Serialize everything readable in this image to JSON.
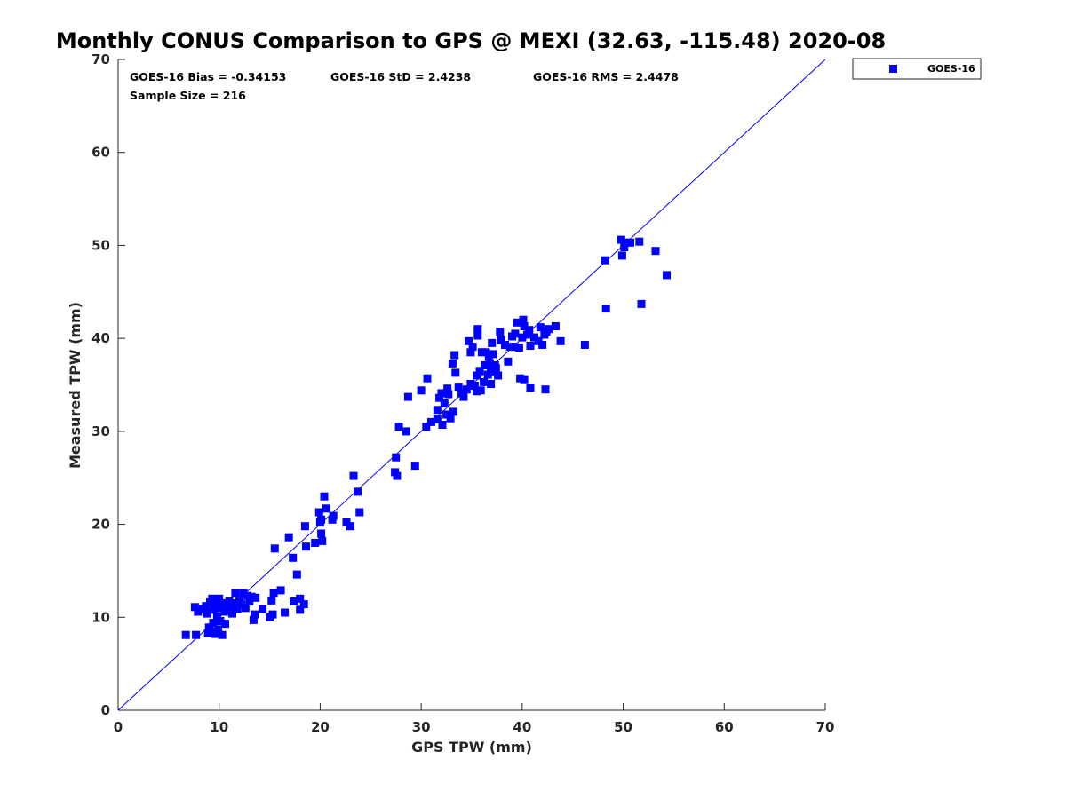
{
  "chart_data": {
    "type": "scatter",
    "title": "Monthly CONUS Comparison to GPS @ MEXI (32.63, -115.48) 2020-08",
    "xlabel": "GPS TPW (mm)",
    "ylabel": "Measured TPW (mm)",
    "xlim": [
      0,
      70
    ],
    "ylim": [
      0,
      70
    ],
    "xticks": [
      "0",
      "10",
      "20",
      "30",
      "40",
      "50",
      "60",
      "70"
    ],
    "yticks": [
      "0",
      "10",
      "20",
      "30",
      "40",
      "50",
      "60",
      "70"
    ],
    "grid": false,
    "legend_position": "top-right, outside plot",
    "reference_line": {
      "x": [
        0,
        70
      ],
      "y": [
        0,
        70
      ],
      "color": "#0000ff"
    },
    "stats": {
      "bias": "GOES-16 Bias = -0.34153",
      "std": "GOES-16 StD = 2.4238",
      "rms": "GOES-16 RMS = 2.4478",
      "sample": "Sample Size = 216"
    },
    "series": [
      {
        "name": "GOES-16",
        "color": "#0000ff",
        "marker": "square",
        "points": [
          [
            6.7,
            8.1
          ],
          [
            7.7,
            8.1
          ],
          [
            7.6,
            11.1
          ],
          [
            7.9,
            10.6
          ],
          [
            8.4,
            10.9
          ],
          [
            8.8,
            10.4
          ],
          [
            8.7,
            11.2
          ],
          [
            8.9,
            8.3
          ],
          [
            9.0,
            8.9
          ],
          [
            9.1,
            11.6
          ],
          [
            9.2,
            8.5
          ],
          [
            9.3,
            12.0
          ],
          [
            9.4,
            9.4
          ],
          [
            9.5,
            10.8
          ],
          [
            9.6,
            8.2
          ],
          [
            9.7,
            11.3
          ],
          [
            9.8,
            10.1
          ],
          [
            9.9,
            8.7
          ],
          [
            10.0,
            12.0
          ],
          [
            10.1,
            9.6
          ],
          [
            10.2,
            11.0
          ],
          [
            10.3,
            8.1
          ],
          [
            10.4,
            11.5
          ],
          [
            10.5,
            10.6
          ],
          [
            10.6,
            9.3
          ],
          [
            10.8,
            11.2
          ],
          [
            11.0,
            11.7
          ],
          [
            11.1,
            10.9
          ],
          [
            11.3,
            10.4
          ],
          [
            11.5,
            11.5
          ],
          [
            11.6,
            12.6
          ],
          [
            11.8,
            10.9
          ],
          [
            12.0,
            12.0
          ],
          [
            12.2,
            11.4
          ],
          [
            12.4,
            12.6
          ],
          [
            12.6,
            11.0
          ],
          [
            12.8,
            12.3
          ],
          [
            13.0,
            11.7
          ],
          [
            13.2,
            12.2
          ],
          [
            13.4,
            9.7
          ],
          [
            13.5,
            10.3
          ],
          [
            13.6,
            12.1
          ],
          [
            14.3,
            10.9
          ],
          [
            15.0,
            10.0
          ],
          [
            15.2,
            11.8
          ],
          [
            15.4,
            12.6
          ],
          [
            15.3,
            10.3
          ],
          [
            16.1,
            12.9
          ],
          [
            16.5,
            10.5
          ],
          [
            16.9,
            18.6
          ],
          [
            17.3,
            16.4
          ],
          [
            17.4,
            11.7
          ],
          [
            17.7,
            14.6
          ],
          [
            18.0,
            12.0
          ],
          [
            18.0,
            10.8
          ],
          [
            18.4,
            11.4
          ],
          [
            18.5,
            19.8
          ],
          [
            18.6,
            17.6
          ],
          [
            15.5,
            17.4
          ],
          [
            19.5,
            18.0
          ],
          [
            19.9,
            21.3
          ],
          [
            20.0,
            20.2
          ],
          [
            20.1,
            20.5
          ],
          [
            20.2,
            18.2
          ],
          [
            20.1,
            19.0
          ],
          [
            20.4,
            23.0
          ],
          [
            20.6,
            21.7
          ],
          [
            21.2,
            20.5
          ],
          [
            21.3,
            20.9
          ],
          [
            22.6,
            20.2
          ],
          [
            23.0,
            19.8
          ],
          [
            23.3,
            25.2
          ],
          [
            23.7,
            23.5
          ],
          [
            23.9,
            21.3
          ],
          [
            27.4,
            25.6
          ],
          [
            27.5,
            27.2
          ],
          [
            27.6,
            25.2
          ],
          [
            27.8,
            30.5
          ],
          [
            28.5,
            30.0
          ],
          [
            28.7,
            33.7
          ],
          [
            29.4,
            26.3
          ],
          [
            30.0,
            34.4
          ],
          [
            30.5,
            30.5
          ],
          [
            30.6,
            35.7
          ],
          [
            31.0,
            31.0
          ],
          [
            31.6,
            31.3
          ],
          [
            31.6,
            32.3
          ],
          [
            31.8,
            33.6
          ],
          [
            32.0,
            34.1
          ],
          [
            32.1,
            30.7
          ],
          [
            32.3,
            33.0
          ],
          [
            32.5,
            31.8
          ],
          [
            32.6,
            34.6
          ],
          [
            32.7,
            34.0
          ],
          [
            32.9,
            31.4
          ],
          [
            33.2,
            32.1
          ],
          [
            33.1,
            37.3
          ],
          [
            33.3,
            38.2
          ],
          [
            33.4,
            36.3
          ],
          [
            33.7,
            34.8
          ],
          [
            34.0,
            34.1
          ],
          [
            34.2,
            33.7
          ],
          [
            34.5,
            34.5
          ],
          [
            34.7,
            39.7
          ],
          [
            34.9,
            35.1
          ],
          [
            34.9,
            38.5
          ],
          [
            35.1,
            39.1
          ],
          [
            35.3,
            34.9
          ],
          [
            35.5,
            36.0
          ],
          [
            35.5,
            34.3
          ],
          [
            35.6,
            40.3
          ],
          [
            35.6,
            41.0
          ],
          [
            35.8,
            36.5
          ],
          [
            35.9,
            34.4
          ],
          [
            36.0,
            38.5
          ],
          [
            36.2,
            35.3
          ],
          [
            36.3,
            37.1
          ],
          [
            36.4,
            38.5
          ],
          [
            36.6,
            36.1
          ],
          [
            36.7,
            38.0
          ],
          [
            36.8,
            37.3
          ],
          [
            36.9,
            35.1
          ],
          [
            36.9,
            36.6
          ],
          [
            37.0,
            39.5
          ],
          [
            37.1,
            38.3
          ],
          [
            37.2,
            36.4
          ],
          [
            37.3,
            37.1
          ],
          [
            37.4,
            36.8
          ],
          [
            37.6,
            36.0
          ],
          [
            37.8,
            40.7
          ],
          [
            37.9,
            39.8
          ],
          [
            38.3,
            39.3
          ],
          [
            38.6,
            37.5
          ],
          [
            38.8,
            39.1
          ],
          [
            39.0,
            40.2
          ],
          [
            39.2,
            39.1
          ],
          [
            39.3,
            40.5
          ],
          [
            39.5,
            41.7
          ],
          [
            39.7,
            39.0
          ],
          [
            39.8,
            35.7
          ],
          [
            40.0,
            40.1
          ],
          [
            40.1,
            42.0
          ],
          [
            40.2,
            35.6
          ],
          [
            40.2,
            41.3
          ],
          [
            40.5,
            40.4
          ],
          [
            40.7,
            40.9
          ],
          [
            40.8,
            34.7
          ],
          [
            40.8,
            39.2
          ],
          [
            41.2,
            40.1
          ],
          [
            41.6,
            39.7
          ],
          [
            41.8,
            41.2
          ],
          [
            42.0,
            39.3
          ],
          [
            42.2,
            40.4
          ],
          [
            42.3,
            34.5
          ],
          [
            42.4,
            40.7
          ],
          [
            42.6,
            41.0
          ],
          [
            43.3,
            41.3
          ],
          [
            43.8,
            39.7
          ],
          [
            46.2,
            39.3
          ],
          [
            48.2,
            48.4
          ],
          [
            48.3,
            43.2
          ],
          [
            49.8,
            50.6
          ],
          [
            49.9,
            48.9
          ],
          [
            50.1,
            49.8
          ],
          [
            50.3,
            50.3
          ],
          [
            50.7,
            50.3
          ],
          [
            51.6,
            50.4
          ],
          [
            51.8,
            43.7
          ],
          [
            53.2,
            49.4
          ],
          [
            54.3,
            46.8
          ]
        ]
      }
    ]
  }
}
